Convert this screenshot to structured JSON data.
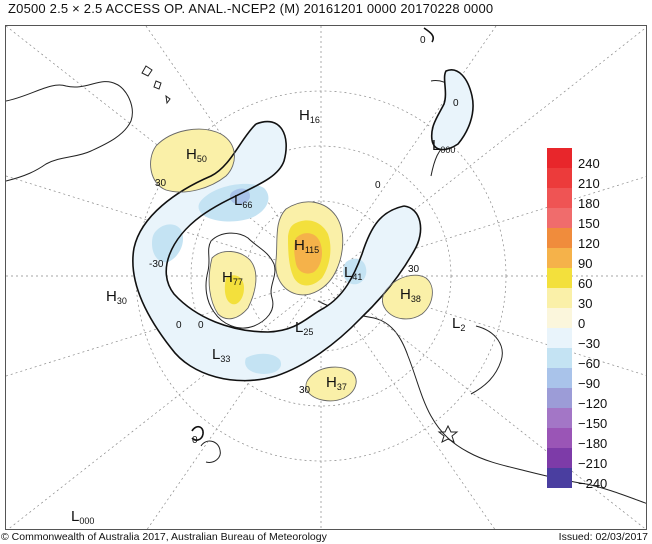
{
  "header": {
    "title": "Z0500  2.5 × 2.5 ACCESS OP. ANAL.-NCEP2 (M)  20161201 0000 20170228 0000"
  },
  "map": {
    "centers": [
      {
        "type": "H",
        "value": "16"
      },
      {
        "type": "L",
        "value": "000"
      },
      {
        "type": "H",
        "value": "50"
      },
      {
        "type": "L",
        "value": "66"
      },
      {
        "type": "H",
        "value": "115"
      },
      {
        "type": "H",
        "value": "77"
      },
      {
        "type": "L",
        "value": "41"
      },
      {
        "type": "H",
        "value": "38"
      },
      {
        "type": "H",
        "value": "30"
      },
      {
        "type": "L",
        "value": "25"
      },
      {
        "type": "L",
        "value": "2"
      },
      {
        "type": "L",
        "value": "33"
      },
      {
        "type": "H",
        "value": "37"
      },
      {
        "type": "L",
        "value": "000"
      }
    ],
    "contour_labels": [
      "0",
      "0",
      "30",
      "0",
      "-30",
      "30",
      "0",
      "0",
      "30",
      "0"
    ]
  },
  "legend": {
    "items": [
      {
        "label": "240",
        "color": "#e8262b"
      },
      {
        "label": "210",
        "color": "#ec3b3b"
      },
      {
        "label": "180",
        "color": "#ef5454"
      },
      {
        "label": "150",
        "color": "#f06c6c"
      },
      {
        "label": "120",
        "color": "#f08c3c"
      },
      {
        "label": "90",
        "color": "#f5b24a"
      },
      {
        "label": "60",
        "color": "#f3e03c"
      },
      {
        "label": "30",
        "color": "#faf0a8"
      },
      {
        "label": "0",
        "color": "#fbf6dc"
      },
      {
        "label": "−30",
        "color": "#e9f4fb"
      },
      {
        "label": "−60",
        "color": "#c4e3f3"
      },
      {
        "label": "−90",
        "color": "#a9c3ea"
      },
      {
        "label": "−120",
        "color": "#9c9cd7"
      },
      {
        "label": "−150",
        "color": "#a376c6"
      },
      {
        "label": "−180",
        "color": "#9a55b6"
      },
      {
        "label": "−210",
        "color": "#7d3ba8"
      },
      {
        "label": "−240",
        "color": "#4a3ea0"
      }
    ]
  },
  "footer": {
    "copyright": "© Commonwealth of Australia 2017, Australian Bureau of Meteorology",
    "issued": "Issued: 02/03/2017"
  }
}
